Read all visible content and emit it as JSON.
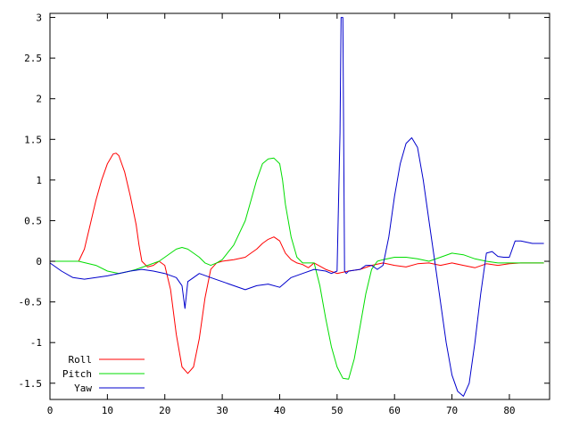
{
  "chart_data": {
    "type": "line",
    "title": "",
    "xlabel": "",
    "ylabel": "",
    "xlim": [
      0,
      87
    ],
    "ylim": [
      -1.7,
      3.05
    ],
    "grid": false,
    "legend_position": "bottom-left",
    "x_ticks": [
      0,
      10,
      20,
      30,
      40,
      50,
      60,
      70,
      80
    ],
    "x_tick_labels": [
      "0",
      "10",
      "20",
      "30",
      "40",
      "50",
      "60",
      "70",
      "80"
    ],
    "y_ticks": [
      -1.5,
      -1,
      -0.5,
      0,
      0.5,
      1,
      1.5,
      2,
      2.5,
      3
    ],
    "y_tick_labels": [
      "-1.5",
      "-1",
      "-0.5",
      "0",
      "0.5",
      "1",
      "1.5",
      "2",
      "2.5",
      "3"
    ],
    "series": [
      {
        "name": "Roll",
        "color": "#ff0000",
        "x": [
          0,
          5,
          6,
          7,
          8,
          9,
          10,
          11,
          11.5,
          12,
          13,
          14,
          15,
          15.5,
          16,
          17,
          18,
          19,
          20,
          21,
          22,
          23,
          24,
          25,
          26,
          27,
          28,
          29,
          30,
          32,
          34,
          35,
          36,
          37,
          38,
          39,
          40,
          41,
          42,
          43,
          44,
          45,
          46,
          48,
          50,
          52,
          54,
          56,
          58,
          60,
          62,
          64,
          66,
          68,
          70,
          72,
          74,
          76,
          78,
          80,
          82,
          86
        ],
        "y": [
          0,
          0,
          0.15,
          0.45,
          0.75,
          1.0,
          1.2,
          1.32,
          1.33,
          1.3,
          1.1,
          0.8,
          0.45,
          0.2,
          0.0,
          -0.07,
          -0.05,
          0.0,
          -0.05,
          -0.35,
          -0.9,
          -1.3,
          -1.38,
          -1.3,
          -0.95,
          -0.45,
          -0.1,
          -0.02,
          0.0,
          0.02,
          0.05,
          0.1,
          0.15,
          0.22,
          0.27,
          0.3,
          0.25,
          0.1,
          0.02,
          -0.02,
          -0.04,
          -0.08,
          -0.02,
          -0.1,
          -0.15,
          -0.12,
          -0.1,
          -0.05,
          -0.02,
          -0.05,
          -0.07,
          -0.03,
          -0.02,
          -0.05,
          -0.02,
          -0.05,
          -0.08,
          -0.03,
          -0.05,
          -0.03,
          -0.02,
          -0.02
        ]
      },
      {
        "name": "Pitch",
        "color": "#00dd00",
        "x": [
          0,
          5,
          8,
          10,
          12,
          14,
          15,
          17,
          19,
          20,
          21,
          22,
          23,
          24,
          25,
          26,
          27,
          28,
          29,
          30,
          32,
          34,
          35,
          36,
          37,
          38,
          39,
          40,
          40.5,
          41,
          42,
          43,
          44,
          45,
          46,
          47,
          48,
          49,
          50,
          51,
          52,
          53,
          54,
          55,
          56,
          57,
          58,
          60,
          62,
          64,
          66,
          68,
          70,
          72,
          74,
          76,
          78,
          80,
          86
        ],
        "y": [
          0,
          0,
          -0.05,
          -0.12,
          -0.15,
          -0.12,
          -0.1,
          -0.05,
          0.0,
          0.05,
          0.1,
          0.15,
          0.17,
          0.15,
          0.1,
          0.05,
          -0.02,
          -0.05,
          -0.02,
          0.02,
          0.2,
          0.5,
          0.75,
          1.0,
          1.2,
          1.26,
          1.27,
          1.2,
          1.0,
          0.7,
          0.3,
          0.05,
          -0.02,
          -0.02,
          -0.02,
          -0.3,
          -0.7,
          -1.05,
          -1.3,
          -1.44,
          -1.45,
          -1.2,
          -0.8,
          -0.4,
          -0.1,
          0.0,
          0.02,
          0.05,
          0.05,
          0.03,
          0.0,
          0.05,
          0.1,
          0.08,
          0.03,
          0.0,
          -0.02,
          -0.02,
          -0.02
        ]
      },
      {
        "name": "Yaw",
        "color": "#0000cc",
        "x": [
          0,
          2,
          4,
          6,
          8,
          10,
          12,
          14,
          16,
          18,
          20,
          22,
          23,
          23.5,
          24,
          25,
          26,
          28,
          30,
          32,
          34,
          36,
          38,
          40,
          42,
          44,
          46,
          48,
          49,
          50,
          50.5,
          50.7,
          51,
          51.3,
          51.6,
          52,
          54,
          55,
          56,
          57,
          58,
          59,
          60,
          61,
          62,
          63,
          64,
          65,
          66,
          67,
          68,
          69,
          70,
          71,
          72,
          73,
          74,
          75,
          76,
          77,
          78,
          79,
          80,
          81,
          82,
          84,
          86
        ],
        "y": [
          -0.02,
          -0.12,
          -0.2,
          -0.22,
          -0.2,
          -0.18,
          -0.15,
          -0.12,
          -0.1,
          -0.12,
          -0.15,
          -0.2,
          -0.3,
          -0.58,
          -0.25,
          -0.2,
          -0.15,
          -0.2,
          -0.25,
          -0.3,
          -0.35,
          -0.3,
          -0.28,
          -0.32,
          -0.2,
          -0.15,
          -0.1,
          -0.12,
          -0.15,
          -0.12,
          1.58,
          3.0,
          3.0,
          -0.12,
          -0.15,
          -0.12,
          -0.1,
          -0.05,
          -0.05,
          -0.1,
          -0.05,
          0.3,
          0.8,
          1.2,
          1.45,
          1.52,
          1.4,
          1.0,
          0.5,
          0.0,
          -0.5,
          -1.0,
          -1.4,
          -1.6,
          -1.66,
          -1.5,
          -1.0,
          -0.4,
          0.1,
          0.12,
          0.06,
          0.05,
          0.05,
          0.25,
          0.25,
          0.22,
          0.22
        ]
      }
    ]
  }
}
